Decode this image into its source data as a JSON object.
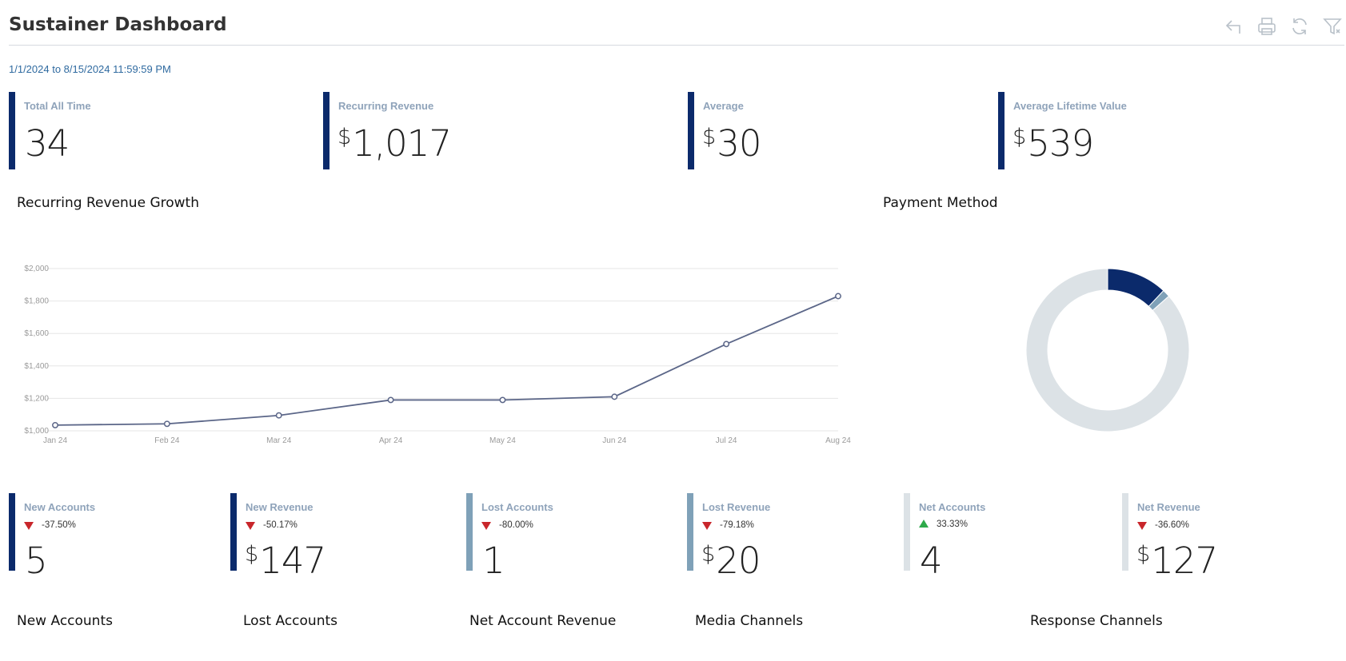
{
  "header": {
    "title": "Sustainer Dashboard",
    "toolbar": [
      {
        "icon": "back-arrow-icon"
      },
      {
        "icon": "print-icon"
      },
      {
        "icon": "refresh-icon"
      },
      {
        "icon": "filter-icon"
      }
    ]
  },
  "date_range": "1/1/2024 to 8/15/2024 11:59:59 PM",
  "kpis_top": [
    {
      "label": "Total All Time",
      "currency": "",
      "value": "34",
      "color": "#0b2a6b"
    },
    {
      "label": "Recurring Revenue",
      "currency": "$",
      "value": "1,017",
      "color": "#0b2a6b"
    },
    {
      "label": "Average",
      "currency": "$",
      "value": "30",
      "color": "#0b2a6b"
    },
    {
      "label": "Average Lifetime Value",
      "currency": "$",
      "value": "539",
      "color": "#0b2a6b"
    }
  ],
  "sections": {
    "revenue_growth": "Recurring Revenue Growth",
    "payment_method": "Payment Method"
  },
  "chart_data": [
    {
      "type": "line",
      "x": [
        "Jan 24",
        "Feb 24",
        "Mar 24",
        "Apr 24",
        "May 24",
        "Jun 24",
        "Jul 24",
        "Aug 24"
      ],
      "series": [
        {
          "values": [
            1035,
            1043,
            1095,
            1190,
            1190,
            1210,
            1535,
            1830
          ]
        }
      ],
      "ylim": [
        1000,
        2000
      ],
      "yticks": [
        "$1,000",
        "$1,200",
        "$1,400",
        "$1,600",
        "$1,800",
        "$2,000"
      ],
      "ytick_values": [
        1000,
        1200,
        1400,
        1600,
        1800,
        2000
      ],
      "grid": true,
      "line_color": "#5b6688"
    },
    {
      "type": "pie",
      "donut": true,
      "values": [
        12,
        1.5,
        86.5
      ],
      "colors": [
        "#0b2a6b",
        "#7fa1b8",
        "#dce2e6"
      ]
    }
  ],
  "kpis_bottom": [
    {
      "label": "New Accounts",
      "direction": "down",
      "change": "-37.50%",
      "currency": "",
      "value": "5",
      "color": "#0b2a6b"
    },
    {
      "label": "New Revenue",
      "direction": "down",
      "change": "-50.17%",
      "currency": "$",
      "value": "147",
      "color": "#0b2a6b"
    },
    {
      "label": "Lost Accounts",
      "direction": "down",
      "change": "-80.00%",
      "currency": "",
      "value": "1",
      "color": "#7fa1b8"
    },
    {
      "label": "Lost Revenue",
      "direction": "down",
      "change": "-79.18%",
      "currency": "$",
      "value": "20",
      "color": "#7fa1b8"
    },
    {
      "label": "Net Accounts",
      "direction": "up",
      "change": "33.33%",
      "currency": "",
      "value": "4",
      "color": "#dce2e6"
    },
    {
      "label": "Net Revenue",
      "direction": "down",
      "change": "-36.60%",
      "currency": "$",
      "value": "127",
      "color": "#dce2e6"
    }
  ],
  "bottom_sections": [
    "New Accounts",
    "Lost Accounts",
    "Net Account Revenue",
    "Media Channels",
    "Response Channels"
  ]
}
